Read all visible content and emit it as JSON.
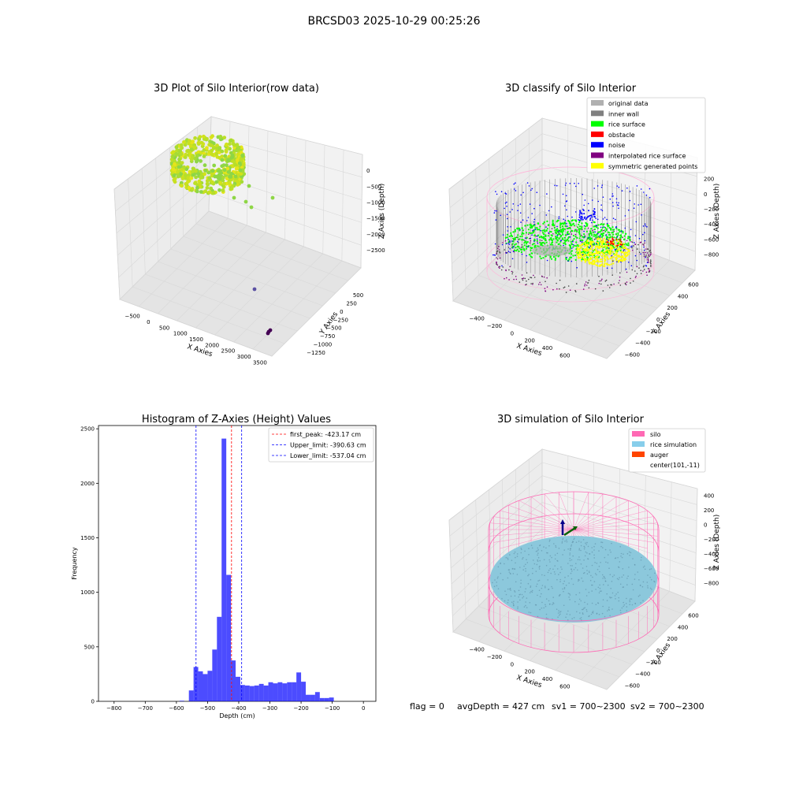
{
  "figure": {
    "suptitle": "BRCSD03 2025-10-29 00:25:26",
    "status": {
      "flag": "flag = 0",
      "avg_depth": "avgDepth = 427 cm",
      "sv1": "sv1 = 700~2300",
      "sv2": "sv2 = 700~2300"
    }
  },
  "chart_data": [
    {
      "type": "scatter",
      "projection": "3d",
      "title": "3D Plot of Silo Interior(row data)",
      "xlabel": "X Axies",
      "ylabel": "Y Axies",
      "zlabel": "Z Axies (Depth)",
      "xticks": [
        "−500",
        "0",
        "500",
        "1000",
        "1500",
        "2000",
        "2500",
        "3000",
        "3500"
      ],
      "yticks": [
        "500",
        "250",
        "0",
        "−250",
        "−500",
        "−750",
        "−1000",
        "−1250"
      ],
      "zticks": [
        "0",
        "−500",
        "−1000",
        "−1500",
        "−2000",
        "−2500"
      ],
      "colormap": "viridis",
      "outliers": [
        {
          "x": 100,
          "y": 200,
          "z": -300
        },
        {
          "x": 300,
          "y": 100,
          "z": -800
        },
        {
          "x": 500,
          "y": 0,
          "z": -900
        },
        {
          "x": 800,
          "y": -100,
          "z": -1000
        },
        {
          "x": 1500,
          "y": -500,
          "z": -1200
        },
        {
          "x": 3200,
          "y": -1200,
          "z": -2600
        }
      ]
    },
    {
      "type": "scatter",
      "projection": "3d",
      "title": "3D classify of Silo Interior",
      "xlabel": "X Axies",
      "ylabel": "Y Axies",
      "zlabel": "Z Axies (Depth)",
      "xticks": [
        "−400",
        "−200",
        "0",
        "200",
        "400",
        "600"
      ],
      "yticks": [
        "600",
        "400",
        "200",
        "0",
        "−200",
        "−400",
        "−600"
      ],
      "zticks": [
        "200",
        "0",
        "−200",
        "−400",
        "−600",
        "−800"
      ],
      "legend_position": "upper right",
      "legend": [
        {
          "label": "original data",
          "color": "#b0b0b0"
        },
        {
          "label": "inner wall",
          "color": "#808080"
        },
        {
          "label": "rice surface",
          "color": "#00ff00"
        },
        {
          "label": "obstacle",
          "color": "#ff0000"
        },
        {
          "label": "noise",
          "color": "#0000ff"
        },
        {
          "label": "interpolated rice surface",
          "color": "#800080"
        },
        {
          "label": "symmetric generated points",
          "color": "#ffff00"
        }
      ]
    },
    {
      "type": "bar",
      "title": "Histogram of Z-Axies (Height) Values",
      "xlabel": "Depth (cm)",
      "ylabel": "Frequency",
      "xlim": [
        -850,
        40
      ],
      "ylim": [
        0,
        2530
      ],
      "xticks": [
        "−800",
        "−700",
        "−600",
        "−500",
        "−400",
        "−300",
        "−200",
        "−100",
        "0"
      ],
      "yticks": [
        "0",
        "500",
        "1000",
        "1500",
        "2000",
        "2500"
      ],
      "bin_start": -590,
      "bin_width": 15,
      "values": [
        5,
        0,
        100,
        315,
        275,
        250,
        280,
        475,
        775,
        2410,
        1160,
        375,
        225,
        150,
        145,
        140,
        145,
        160,
        145,
        175,
        165,
        175,
        165,
        175,
        175,
        265,
        180,
        60,
        60,
        85,
        30,
        30,
        35
      ],
      "bar_color": "#0000ff",
      "legend_position": "upper right",
      "lines": [
        {
          "label": "first_peak: -423.17 cm",
          "x": -423.17,
          "color": "#ff0000"
        },
        {
          "label": "Upper_limit: -390.63 cm",
          "x": -390.63,
          "color": "#0000ff"
        },
        {
          "label": "Lower_limit: -537.04 cm",
          "x": -537.04,
          "color": "#0000ff"
        }
      ]
    },
    {
      "type": "surface",
      "projection": "3d",
      "title": "3D simulation of Silo Interior",
      "xlabel": "X Axies",
      "ylabel": "Y Axies",
      "zlabel": "Z Axies (Depth)",
      "xticks": [
        "−400",
        "−200",
        "0",
        "200",
        "400",
        "600"
      ],
      "yticks": [
        "600",
        "400",
        "200",
        "0",
        "−200",
        "−400",
        "−600"
      ],
      "zticks": [
        "400",
        "200",
        "0",
        "−200",
        "−400",
        "−600",
        "−800"
      ],
      "legend_position": "upper right",
      "legend": [
        {
          "label": "silo",
          "color": "#ff69b4"
        },
        {
          "label": "rice simulation",
          "color": "#87ceeb"
        },
        {
          "label": "auger",
          "color": "#ff4500"
        },
        {
          "label": "center(101,-11)",
          "color": ""
        }
      ]
    }
  ]
}
